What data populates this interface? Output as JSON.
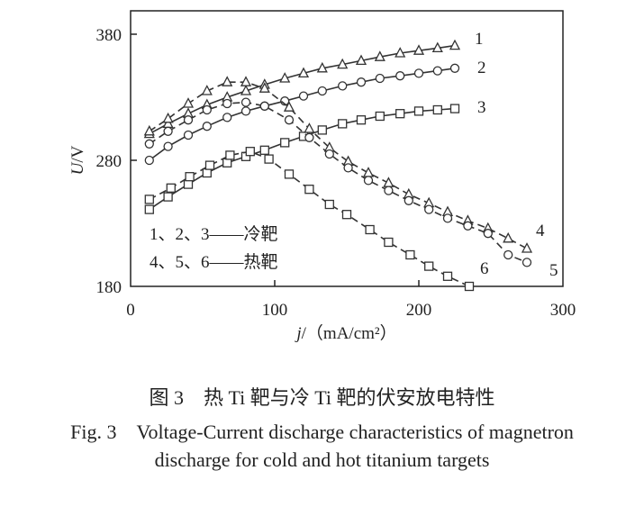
{
  "chart_data": {
    "type": "line",
    "title": "",
    "xlabel": "j/（mA/cm²）",
    "xlabel_var": "j",
    "xlabel_unit": "/（mA/cm²）",
    "ylabel": "U/V",
    "ylabel_var": "U",
    "ylabel_unit": "/V",
    "xlim": [
      0,
      300
    ],
    "ylim": [
      180,
      400
    ],
    "xticks": [
      0,
      100,
      200,
      300
    ],
    "yticks": [
      180,
      280,
      380
    ],
    "grid": false,
    "legend": {
      "placement": "bottom-left",
      "entries": [
        "1、2、3——冷靶",
        "4、5、6——热靶"
      ]
    },
    "series": [
      {
        "name": "1",
        "marker": "triangle",
        "line": "solid",
        "x": [
          13,
          26,
          40,
          53,
          67,
          80,
          93,
          107,
          120,
          133,
          147,
          160,
          173,
          187,
          200,
          213,
          225
        ],
        "y": [
          301,
          309,
          317,
          324,
          330,
          335,
          340,
          345,
          349,
          353,
          356,
          359,
          362,
          365,
          367,
          369,
          371
        ]
      },
      {
        "name": "2",
        "marker": "circle",
        "line": "solid",
        "x": [
          13,
          26,
          40,
          53,
          67,
          80,
          93,
          107,
          120,
          133,
          147,
          160,
          173,
          187,
          200,
          213,
          225
        ],
        "y": [
          280,
          291,
          300,
          307,
          314,
          319,
          323,
          327,
          331,
          335,
          339,
          342,
          345,
          347,
          349,
          351,
          353
        ]
      },
      {
        "name": "3",
        "marker": "square",
        "line": "solid",
        "x": [
          13,
          26,
          40,
          53,
          67,
          80,
          93,
          107,
          120,
          133,
          147,
          160,
          173,
          187,
          200,
          213,
          225
        ],
        "y": [
          241,
          251,
          261,
          270,
          278,
          283,
          288,
          294,
          299,
          304,
          309,
          312,
          315,
          317,
          319,
          320,
          321
        ]
      },
      {
        "name": "4",
        "marker": "triangle",
        "line": "dashed",
        "x": [
          13,
          26,
          40,
          53,
          67,
          80,
          93,
          110,
          124,
          138,
          151,
          165,
          179,
          193,
          207,
          220,
          234,
          248,
          262,
          275
        ],
        "y": [
          303,
          313,
          325,
          335,
          342,
          342,
          337,
          322,
          305,
          290,
          279,
          270,
          262,
          253,
          246,
          239,
          232,
          226,
          218,
          210
        ]
      },
      {
        "name": "5",
        "marker": "circle",
        "line": "dashed",
        "x": [
          13,
          26,
          40,
          53,
          67,
          80,
          93,
          110,
          124,
          138,
          151,
          165,
          179,
          193,
          207,
          220,
          234,
          248,
          262,
          275
        ],
        "y": [
          293,
          303,
          312,
          320,
          325,
          326,
          323,
          312,
          298,
          285,
          274,
          264,
          256,
          248,
          241,
          234,
          228,
          222,
          205,
          199
        ]
      },
      {
        "name": "6",
        "marker": "square",
        "line": "dashed",
        "x": [
          13,
          28,
          41,
          55,
          69,
          83,
          96,
          110,
          124,
          138,
          150,
          166,
          179,
          194,
          207,
          220,
          235
        ],
        "y": [
          249,
          258,
          267,
          276,
          284,
          287,
          281,
          269,
          257,
          245,
          237,
          225,
          215,
          205,
          196,
          188,
          180
        ]
      }
    ]
  },
  "caption": {
    "cn": "图 3　热 Ti 靶与冷 Ti 靶的伏安放电特性",
    "en_line1": "Fig. 3　Voltage-Current discharge characteristics of magnetron",
    "en_line2": "discharge for cold and hot titanium targets"
  }
}
